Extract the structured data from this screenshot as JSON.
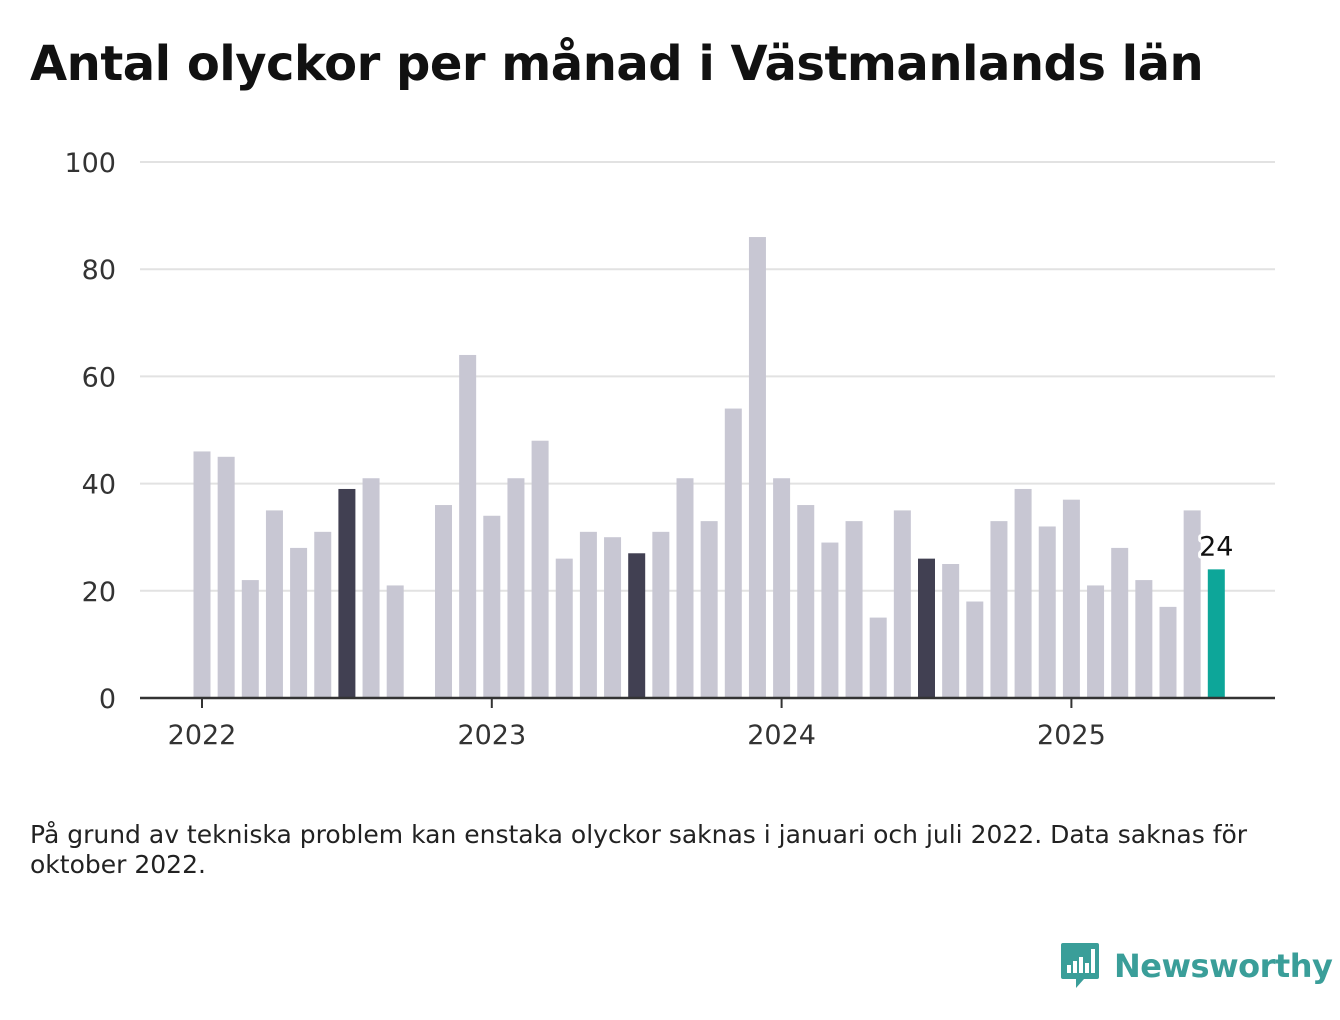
{
  "title": "Antal olyckor per månad i Västmanlands län",
  "note": "På grund av tekniska problem kan enstaka olyckor saknas i januari och juli 2022. Data saknas för oktober 2022.",
  "brand": {
    "name": "Newsworthy",
    "icon": "newsworthy-bar-chart-icon",
    "color": "#3a9e99"
  },
  "colors": {
    "default": "#c8c7d3",
    "highlight": "#414052",
    "latest": "#0da699",
    "grid": "#e2e2e2",
    "axis": "#333333"
  },
  "chart_data": {
    "type": "bar",
    "title": "Antal olyckor per månad i Västmanlands län",
    "xlabel": "",
    "ylabel": "",
    "ylim": [
      0,
      100
    ],
    "yticks": [
      0,
      20,
      40,
      60,
      80,
      100
    ],
    "xticks": [
      "2022",
      "2023",
      "2024",
      "2025"
    ],
    "grid": true,
    "annotation": {
      "label": "24",
      "month": "2025-07"
    },
    "categories": [
      "2022-01",
      "2022-02",
      "2022-03",
      "2022-04",
      "2022-05",
      "2022-06",
      "2022-07",
      "2022-08",
      "2022-09",
      "2022-10",
      "2022-11",
      "2022-12",
      "2023-01",
      "2023-02",
      "2023-03",
      "2023-04",
      "2023-05",
      "2023-06",
      "2023-07",
      "2023-08",
      "2023-09",
      "2023-10",
      "2023-11",
      "2023-12",
      "2024-01",
      "2024-02",
      "2024-03",
      "2024-04",
      "2024-05",
      "2024-06",
      "2024-07",
      "2024-08",
      "2024-09",
      "2024-10",
      "2024-11",
      "2024-12",
      "2025-01",
      "2025-02",
      "2025-03",
      "2025-04",
      "2025-05",
      "2025-06",
      "2025-07"
    ],
    "values": [
      46,
      45,
      22,
      35,
      28,
      31,
      39,
      41,
      21,
      null,
      36,
      64,
      34,
      41,
      48,
      26,
      31,
      30,
      27,
      31,
      41,
      33,
      54,
      86,
      41,
      36,
      29,
      33,
      15,
      35,
      26,
      25,
      18,
      33,
      39,
      32,
      37,
      21,
      28,
      22,
      17,
      35,
      24
    ],
    "highlight": [
      "2022-07",
      "2023-07",
      "2024-07"
    ],
    "latest": "2025-07"
  }
}
